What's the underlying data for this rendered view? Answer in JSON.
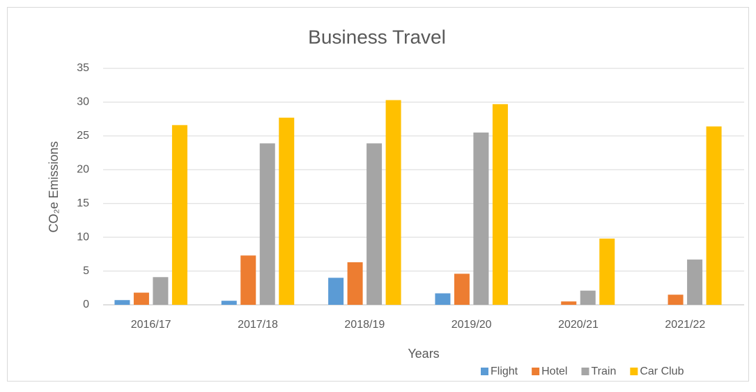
{
  "chart_data": {
    "type": "bar",
    "title": "Business Travel",
    "x_label": "Years",
    "y_label": "CO₂e Emissions",
    "categories": [
      "2016/17",
      "2017/18",
      "2018/19",
      "2019/20",
      "2020/21",
      "2021/22"
    ],
    "series": [
      {
        "name": "Flight",
        "color": "#5b9bd5",
        "values": [
          0.7,
          0.6,
          4.0,
          1.7,
          0,
          0
        ]
      },
      {
        "name": "Hotel",
        "color": "#ed7d31",
        "values": [
          1.8,
          7.3,
          6.3,
          4.6,
          0.5,
          1.5
        ]
      },
      {
        "name": "Train",
        "color": "#a5a5a5",
        "values": [
          4.1,
          23.9,
          23.9,
          25.5,
          2.1,
          6.7
        ]
      },
      {
        "name": "Car Club",
        "color": "#ffc000",
        "values": [
          26.6,
          27.7,
          30.3,
          29.7,
          9.8,
          26.4
        ]
      }
    ],
    "ylim": [
      0,
      35
    ],
    "yticks": [
      0,
      5,
      10,
      15,
      20,
      25,
      30,
      35
    ],
    "grid": true,
    "legend": "bottom-right"
  }
}
